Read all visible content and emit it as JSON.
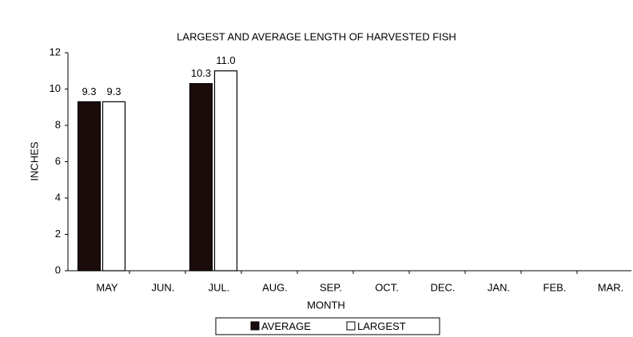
{
  "chart_data": {
    "type": "bar",
    "title": "LARGEST AND AVERAGE LENGTH OF HARVESTED FISH",
    "x_label": "MONTH",
    "y_label": "INCHES",
    "categories": [
      "MAY",
      "JUN.",
      "JUL.",
      "AUG.",
      "SEP.",
      "OCT.",
      "DEC.",
      "JAN.",
      "FEB.",
      "MAR."
    ],
    "series": [
      {
        "name": "AVERAGE",
        "color": "#1c0b0b",
        "values": [
          9.3,
          null,
          10.3,
          null,
          null,
          null,
          null,
          null,
          null,
          null
        ],
        "value_labels": [
          "9.3",
          null,
          "10.3",
          null,
          null,
          null,
          null,
          null,
          null,
          null
        ]
      },
      {
        "name": "LARGEST",
        "color": "#ffffff",
        "values": [
          9.3,
          null,
          11.0,
          null,
          null,
          null,
          null,
          null,
          null,
          null
        ],
        "value_labels": [
          "9.3",
          null,
          "11.0",
          null,
          null,
          null,
          null,
          null,
          null,
          null
        ]
      }
    ],
    "ylim": [
      0,
      12
    ],
    "yticks": [
      0,
      2,
      4,
      6,
      8,
      10,
      12
    ],
    "grid": false,
    "legend": "bottom"
  }
}
